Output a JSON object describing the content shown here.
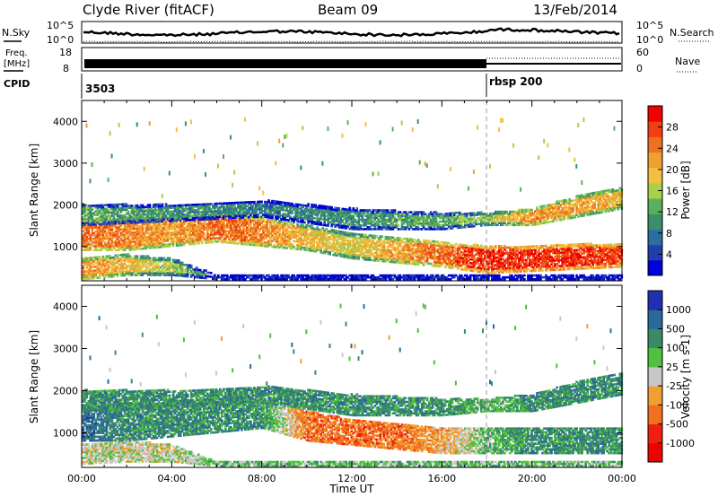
{
  "header": {
    "station": "Clyde River (fitACF)",
    "beam": "Beam 09",
    "date": "13/Feb/2014"
  },
  "strip": {
    "nsky_label": "N.Sky",
    "nsky_ticks": [
      "10^5",
      "10^0"
    ],
    "nsearch_label": "N.Search",
    "freq_label_top": "Freq.",
    "freq_label_unit": "[MHz]",
    "freq_ticks": [
      "18",
      "8"
    ],
    "nave_ticks": [
      "60",
      "0"
    ],
    "nave_label": "Nave",
    "cpid_label": "CPID",
    "cpid_values": [
      "3503",
      "rbsp 200"
    ],
    "cpid_change_hours": 18
  },
  "chart_data": [
    {
      "type": "heatmap",
      "title": "",
      "xlabel": "",
      "ylabel": "Slant Range [km]",
      "xlim": [
        0,
        24
      ],
      "ylim": [
        180,
        4500
      ],
      "x_tick_labels": [
        "00:00",
        "04:00",
        "08:00",
        "12:00",
        "16:00",
        "20:00",
        "00:00"
      ],
      "y_ticks": [
        1000,
        2000,
        3000,
        4000
      ],
      "colorbar": {
        "label": "Power [dB]",
        "ticks": [
          4,
          8,
          12,
          16,
          20,
          24,
          28
        ],
        "range": [
          0,
          32
        ],
        "colors": [
          "#0000d8",
          "#1f3fb0",
          "#2e6da0",
          "#3a9068",
          "#5bb05b",
          "#a8d048",
          "#f0c040",
          "#f0a030",
          "#f07020",
          "#f04010",
          "#f00000"
        ]
      },
      "bands": [
        {
          "name": "main",
          "segments": [
            [
              0,
              900,
              1600,
              26
            ],
            [
              2,
              900,
              1700,
              24
            ],
            [
              4,
              1000,
              1700,
              22
            ],
            [
              6,
              1100,
              1800,
              26
            ],
            [
              8,
              1000,
              1700,
              24
            ],
            [
              10,
              900,
              1500,
              20
            ],
            [
              12,
              700,
              1300,
              18
            ],
            [
              14,
              600,
              1200,
              22
            ],
            [
              16,
              500,
              1100,
              26
            ],
            [
              18,
              350,
              1000,
              30
            ],
            [
              20,
              400,
              1000,
              30
            ],
            [
              22,
              450,
              1050,
              30
            ],
            [
              24,
              500,
              1050,
              28
            ]
          ]
        },
        {
          "name": "upper",
          "segments": [
            [
              0,
              1500,
              2000,
              12
            ],
            [
              4,
              1600,
              2000,
              10
            ],
            [
              8,
              1700,
              2100,
              8
            ],
            [
              12,
              1400,
              1900,
              10
            ],
            [
              16,
              1400,
              1800,
              12
            ],
            [
              18,
              1500,
              1800,
              16
            ],
            [
              20,
              1500,
              1900,
              24
            ],
            [
              22,
              1700,
              2200,
              22
            ],
            [
              24,
              1900,
              2400,
              20
            ]
          ]
        },
        {
          "name": "near",
          "segments": [
            [
              0,
              200,
              700,
              24
            ],
            [
              2,
              300,
              800,
              20
            ],
            [
              4,
              300,
              700,
              16
            ],
            [
              6,
              200,
              300,
              8
            ]
          ]
        }
      ]
    },
    {
      "type": "heatmap",
      "title": "",
      "xlabel": "Time UT",
      "ylabel": "Slant Range [km]",
      "xlim": [
        0,
        24
      ],
      "ylim": [
        180,
        4500
      ],
      "x_tick_labels": [
        "00:00",
        "04:00",
        "08:00",
        "12:00",
        "16:00",
        "20:00",
        "00:00"
      ],
      "y_ticks": [
        1000,
        2000,
        3000,
        4000
      ],
      "colorbar": {
        "label": "Velocity [m s-1]",
        "tick_labels": [
          "1000",
          "500",
          "100",
          "25",
          "-25",
          "-100",
          "-500",
          "-1000"
        ],
        "colors": [
          "#2030b0",
          "#2a6a9a",
          "#3a8a6a",
          "#50c040",
          "#c8c8c8",
          "#f0a030",
          "#f07020",
          "#f02010",
          "#f00000"
        ]
      },
      "bands": [
        {
          "name": "main",
          "segments": [
            [
              0,
              800,
              1600,
              1
            ],
            [
              2,
              800,
              1700,
              2
            ],
            [
              4,
              900,
              1700,
              2
            ],
            [
              6,
              1000,
              1800,
              2
            ],
            [
              8,
              1100,
              1800,
              2
            ],
            [
              10,
              800,
              1500,
              6
            ],
            [
              12,
              700,
              1300,
              6
            ],
            [
              14,
              600,
              1200,
              6
            ],
            [
              16,
              500,
              1100,
              5
            ],
            [
              18,
              500,
              1100,
              3
            ],
            [
              20,
              500,
              1100,
              2
            ],
            [
              22,
              500,
              1100,
              2
            ],
            [
              24,
              500,
              1100,
              2
            ]
          ]
        },
        {
          "name": "upper",
          "segments": [
            [
              0,
              1500,
              2000,
              2
            ],
            [
              4,
              1600,
              2000,
              2
            ],
            [
              8,
              1700,
              2100,
              2
            ],
            [
              12,
              1400,
              1900,
              2
            ],
            [
              16,
              1400,
              1800,
              2
            ],
            [
              18,
              1500,
              1800,
              3
            ],
            [
              20,
              1500,
              1900,
              2
            ],
            [
              22,
              1700,
              2200,
              2
            ],
            [
              24,
              1900,
              2400,
              2
            ]
          ]
        },
        {
          "name": "near",
          "segments": [
            [
              0,
              250,
              700,
              4
            ],
            [
              2,
              300,
              800,
              4
            ],
            [
              4,
              300,
              700,
              4
            ],
            [
              6,
              200,
              300,
              3
            ]
          ]
        }
      ]
    }
  ]
}
